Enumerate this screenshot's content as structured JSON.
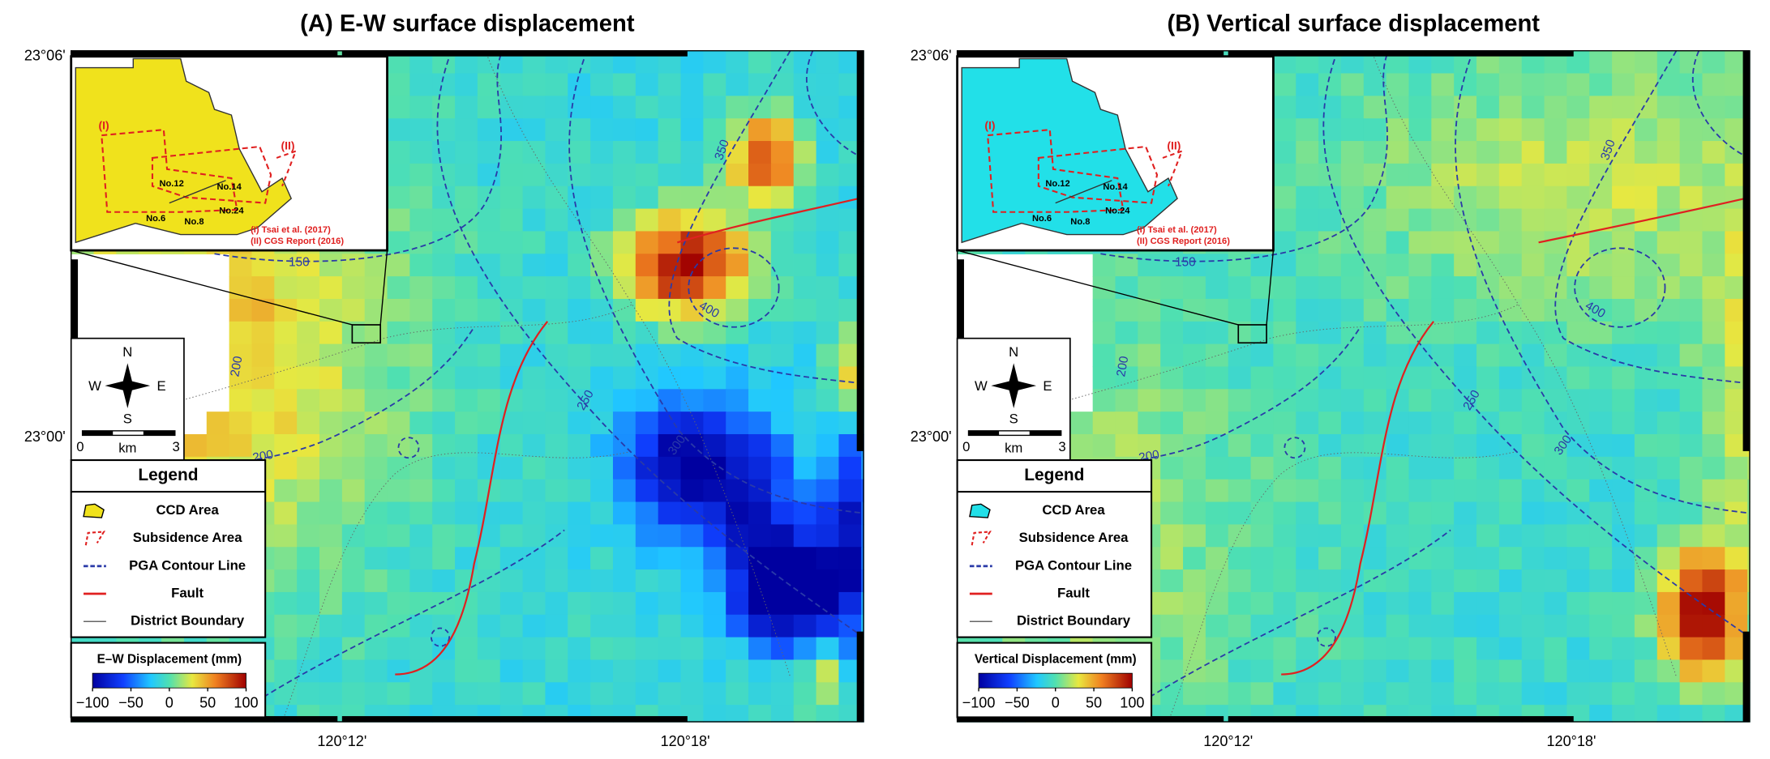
{
  "panels": [
    {
      "title": "(A) E-W surface displacement",
      "lat_labels": [
        "23°06'",
        "23°00'"
      ],
      "lon_labels": [
        "120°12'",
        "120°18'"
      ],
      "contour_labels": [
        150,
        200,
        200,
        250,
        300,
        350,
        400
      ],
      "inset": {
        "area_labels": [
          "(I)",
          "(II)"
        ],
        "site_labels": [
          "No.12",
          "No.14",
          "No.6",
          "No.8",
          "No.24"
        ],
        "sources": [
          "(I)  Tsai et al. (2017)",
          "(II) CGS Report (2016)"
        ]
      },
      "compass": [
        "N",
        "S",
        "W",
        "E"
      ],
      "scale_labels": [
        "0",
        "km",
        "3"
      ],
      "legend": {
        "title": "Legend",
        "items": [
          "CCD Area",
          "Subsidence Area",
          "PGA Contour Line",
          "Fault",
          "District Boundary"
        ],
        "ccd_color": "#f0e21c"
      },
      "colorbar": {
        "title": "E–W Displacement (mm)",
        "ticks": [
          {
            "value": -100,
            "label": "−100"
          },
          {
            "value": -50,
            "label": "−50"
          },
          0,
          50,
          100
        ]
      }
    },
    {
      "title": "(B) Vertical surface displacement",
      "lat_labels": [
        "23°06'",
        "23°00'"
      ],
      "lon_labels": [
        "120°12'",
        "120°18'"
      ],
      "contour_labels": [
        150,
        200,
        200,
        250,
        300,
        350,
        400
      ],
      "inset": {
        "area_labels": [
          "(I)",
          "(II)"
        ],
        "site_labels": [
          "No.12",
          "No.14",
          "No.6",
          "No.8",
          "No.24"
        ],
        "sources": [
          "(I)  Tsai et al. (2017)",
          "(II) CGS Report (2016)"
        ]
      },
      "compass": [
        "N",
        "S",
        "W",
        "E"
      ],
      "scale_labels": [
        "0",
        "km",
        "3"
      ],
      "legend": {
        "title": "Legend",
        "items": [
          "CCD Area",
          "Subsidence Area",
          "PGA Contour Line",
          "Fault",
          "District Boundary"
        ],
        "ccd_color": "#22e0e8"
      },
      "colorbar": {
        "title": "Vertical Displacement (mm)",
        "ticks": [
          {
            "value": -100,
            "label": "−100"
          },
          {
            "value": -50,
            "label": "−50"
          },
          0,
          50,
          100
        ]
      }
    }
  ]
}
